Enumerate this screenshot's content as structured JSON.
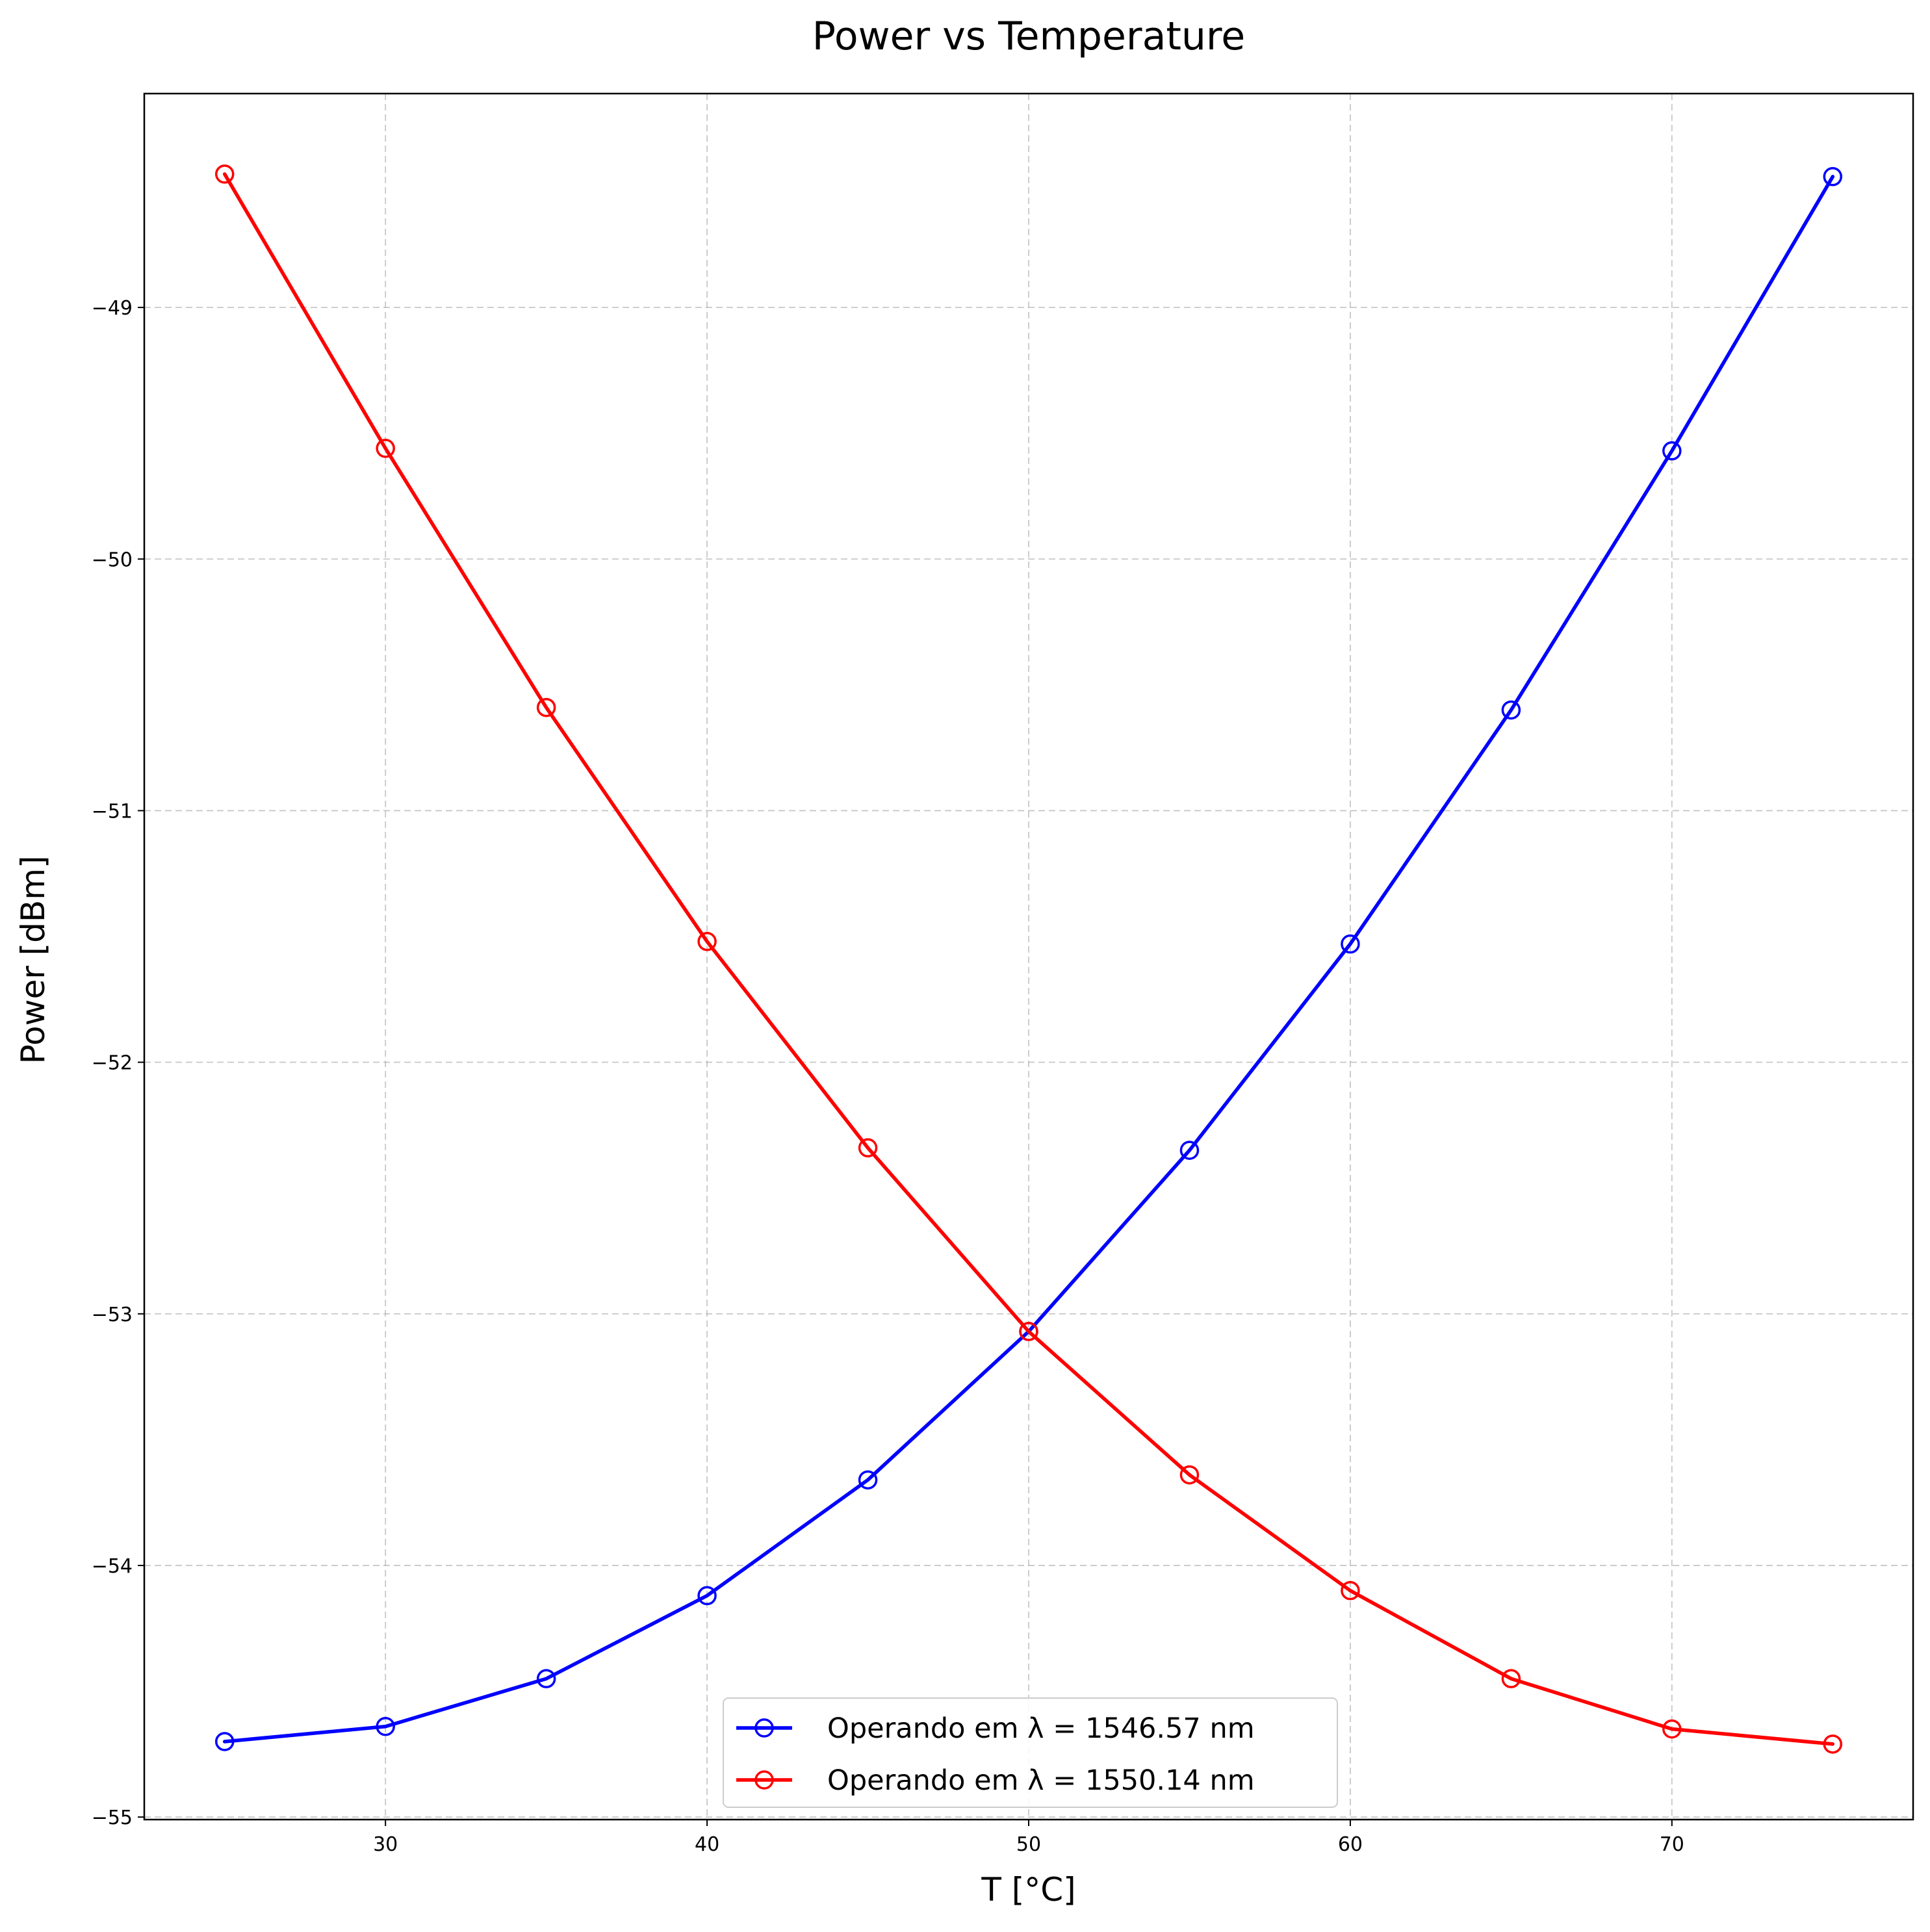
{
  "chart_data": {
    "type": "line",
    "title": "Power vs Temperature",
    "xlabel": "T [°C]",
    "ylabel": "Power [dBm]",
    "xlim": [
      22.5,
      77.5
    ],
    "ylim": [
      -55.01,
      -48.15
    ],
    "x_ticks": [
      30,
      40,
      50,
      60,
      70
    ],
    "y_ticks": [
      -49,
      -50,
      -51,
      -52,
      -53,
      -54,
      -55
    ],
    "x_tick_labels": [
      "30",
      "40",
      "50",
      "60",
      "70"
    ],
    "y_tick_labels": [
      "−49",
      "−50",
      "−51",
      "−52",
      "−53",
      "−54",
      "−55"
    ],
    "grid": true,
    "legend_position": "bottom-center",
    "x": [
      25,
      30,
      35,
      40,
      45,
      50,
      55,
      60,
      65,
      70,
      75
    ],
    "series": [
      {
        "name": "Operando em λ = 1546.57 nm",
        "color": "#0000ff",
        "marker": "open-circle",
        "values": [
          -54.7,
          -54.64,
          -54.45,
          -54.12,
          -53.66,
          -53.07,
          -52.35,
          -51.53,
          -50.6,
          -49.57,
          -48.48
        ]
      },
      {
        "name": "Operando em λ = 1550.14 nm",
        "color": "#ff0000",
        "marker": "open-circle",
        "values": [
          -48.47,
          -49.56,
          -50.59,
          -51.52,
          -52.34,
          -53.07,
          -53.64,
          -54.1,
          -54.45,
          -54.65,
          -54.71
        ]
      }
    ]
  }
}
